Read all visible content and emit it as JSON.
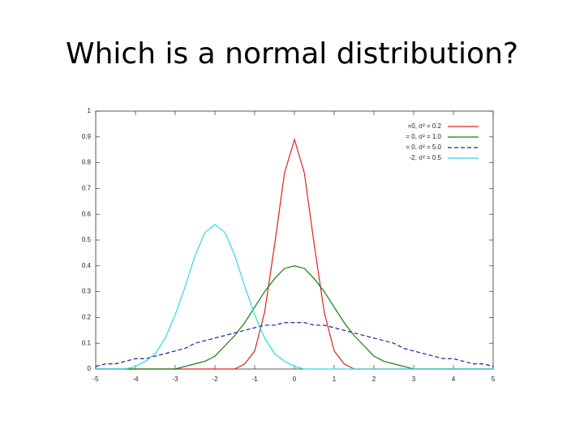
{
  "chart_data": {
    "type": "line",
    "title": "Which is a normal distribution?",
    "x": [
      -5,
      -4.75,
      -4.5,
      -4.25,
      -4,
      -3.75,
      -3.5,
      -3.25,
      -3,
      -2.75,
      -2.5,
      -2.25,
      -2,
      -1.75,
      -1.5,
      -1.25,
      -1,
      -0.75,
      -0.5,
      -0.25,
      0,
      0.25,
      0.5,
      0.75,
      1,
      1.25,
      1.5,
      1.75,
      2,
      2.25,
      2.5,
      2.75,
      3,
      3.25,
      3.5,
      3.75,
      4,
      4.25,
      4.5,
      4.75,
      5
    ],
    "series": [
      {
        "name": "=0, σ² = 0.2",
        "color": "#e02020",
        "dashed": false,
        "values": [
          0,
          0,
          0,
          0,
          0,
          0,
          0,
          0,
          0,
          0,
          0,
          0,
          0,
          0,
          0,
          0.02,
          0.07,
          0.22,
          0.48,
          0.76,
          0.89,
          0.76,
          0.48,
          0.22,
          0.07,
          0.02,
          0,
          0,
          0,
          0,
          0,
          0,
          0,
          0,
          0,
          0,
          0,
          0,
          0,
          0,
          0
        ]
      },
      {
        "name": "= 0, σ² = 1.0",
        "color": "#108010",
        "dashed": false,
        "values": [
          0,
          0,
          0,
          0,
          0,
          0,
          0,
          0,
          0,
          0.01,
          0.02,
          0.03,
          0.05,
          0.09,
          0.13,
          0.18,
          0.24,
          0.3,
          0.35,
          0.39,
          0.4,
          0.39,
          0.35,
          0.3,
          0.24,
          0.18,
          0.13,
          0.09,
          0.05,
          0.03,
          0.02,
          0.01,
          0,
          0,
          0,
          0,
          0,
          0,
          0,
          0,
          0
        ]
      },
      {
        "name": "= 0, σ² = 5.0",
        "color": "#2020a0",
        "dashed": true,
        "values": [
          0.01,
          0.02,
          0.02,
          0.03,
          0.04,
          0.04,
          0.05,
          0.06,
          0.07,
          0.08,
          0.1,
          0.11,
          0.12,
          0.13,
          0.14,
          0.15,
          0.16,
          0.17,
          0.17,
          0.18,
          0.18,
          0.18,
          0.17,
          0.17,
          0.16,
          0.15,
          0.14,
          0.13,
          0.12,
          0.11,
          0.1,
          0.08,
          0.07,
          0.06,
          0.05,
          0.04,
          0.04,
          0.03,
          0.02,
          0.02,
          0.01
        ]
      },
      {
        "name": "-2, σ² = 0.5",
        "color": "#30d8e8",
        "dashed": false,
        "values": [
          0,
          0,
          0,
          0,
          0.01,
          0.03,
          0.06,
          0.12,
          0.21,
          0.32,
          0.44,
          0.53,
          0.56,
          0.53,
          0.44,
          0.32,
          0.21,
          0.12,
          0.06,
          0.03,
          0.01,
          0,
          0,
          0,
          0,
          0,
          0,
          0,
          0,
          0,
          0,
          0,
          0,
          0,
          0,
          0,
          0,
          0,
          0,
          0,
          0
        ]
      }
    ],
    "xlim": [
      -5,
      5
    ],
    "ylim": [
      0,
      1
    ],
    "xticks": [
      -5,
      -4,
      -3,
      -2,
      -1,
      0,
      1,
      2,
      3,
      4,
      5
    ],
    "yticks": [
      0,
      0.1,
      0.2,
      0.3,
      0.4,
      0.5,
      0.6,
      0.7,
      0.8,
      0.9,
      1
    ],
    "legend": "upper right",
    "grid": false
  }
}
